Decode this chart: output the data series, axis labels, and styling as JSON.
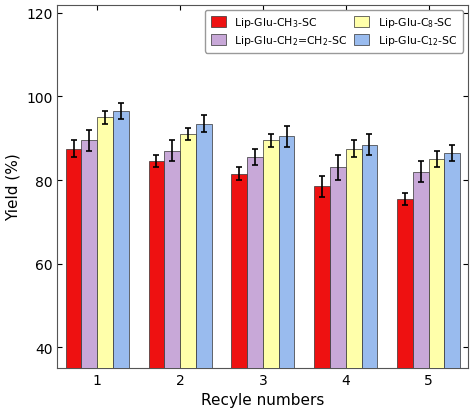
{
  "categories": [
    1,
    2,
    3,
    4,
    5
  ],
  "series": {
    "Lip-Glu-CH$_3$-SC": {
      "values": [
        87.5,
        84.5,
        81.5,
        78.5,
        75.5
      ],
      "errors": [
        2.0,
        1.5,
        1.5,
        2.5,
        1.5
      ],
      "color": "#EE1111"
    },
    "Lip-Glu-CH$_2$=CH$_2$-SC": {
      "values": [
        89.5,
        87.0,
        85.5,
        83.0,
        82.0
      ],
      "errors": [
        2.5,
        2.5,
        2.0,
        3.0,
        2.5
      ],
      "color": "#C8A8D8"
    },
    "Lip-Glu-C$_8$-SC": {
      "values": [
        95.0,
        91.0,
        89.5,
        87.5,
        85.0
      ],
      "errors": [
        1.5,
        1.5,
        1.5,
        2.0,
        2.0
      ],
      "color": "#FFFFAA"
    },
    "Lip-Glu-C$_{12}$-SC": {
      "values": [
        96.5,
        93.5,
        90.5,
        88.5,
        86.5
      ],
      "errors": [
        2.0,
        2.0,
        2.5,
        2.5,
        2.0
      ],
      "color": "#99BBEE"
    }
  },
  "bar_order": [
    "Lip-Glu-CH$_3$-SC",
    "Lip-Glu-CH$_2$=CH$_2$-SC",
    "Lip-Glu-C$_8$-SC",
    "Lip-Glu-C$_{12}$-SC"
  ],
  "legend_row1": [
    "Lip-Glu-CH$_3$-SC",
    "Lip-Glu-CH$_2$=CH$_2$-SC"
  ],
  "legend_row2": [
    "Lip-Glu-C$_8$-SC",
    "Lip-Glu-C$_{12}$-SC"
  ],
  "xlabel": "Recyle numbers",
  "ylabel": "Yield (%)",
  "ylim": [
    35,
    122
  ],
  "yticks": [
    40,
    60,
    80,
    100,
    120
  ],
  "bar_width": 0.19,
  "background_color": "#FFFFFF",
  "edge_color": "#333333"
}
